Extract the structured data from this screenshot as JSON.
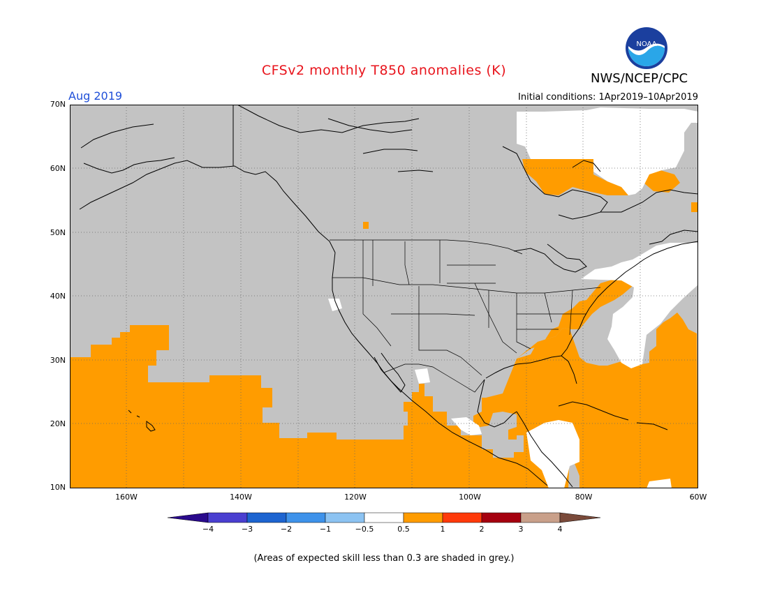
{
  "title": "CFSv2 monthly T850 anomalies (K)",
  "agency": "NWS/NCEP/CPC",
  "logo_text": "NOAA",
  "valid_month": "Aug 2019",
  "initial_conditions": "Initial conditions: 1Apr2019–10Apr2019",
  "lat_labels": [
    "70N",
    "60N",
    "50N",
    "40N",
    "30N",
    "20N",
    "10N"
  ],
  "lon_labels": [
    "160W",
    "140W",
    "120W",
    "100W",
    "80W",
    "60W"
  ],
  "colorbar": {
    "labels": [
      "−4",
      "−3",
      "−2",
      "−1",
      "−0.5",
      "0.5",
      "1",
      "2",
      "3",
      "4"
    ],
    "colors": [
      "#2a0a8c",
      "#4a3fd0",
      "#1d64d0",
      "#3e92ea",
      "#8cc3f2",
      "#ffffff",
      "#ff9c00",
      "#ff3a0a",
      "#a5000f",
      "#c9a08a",
      "#7a4a3a"
    ]
  },
  "footnote": "(Areas of expected skill less than 0.3 are shaded in grey.)",
  "colors": {
    "grey_mask": "#c3c3c3",
    "warm_anomaly": "#ff9c00",
    "neutral": "#ffffff",
    "title": "#e8141c",
    "month": "#1f4fd8"
  }
}
